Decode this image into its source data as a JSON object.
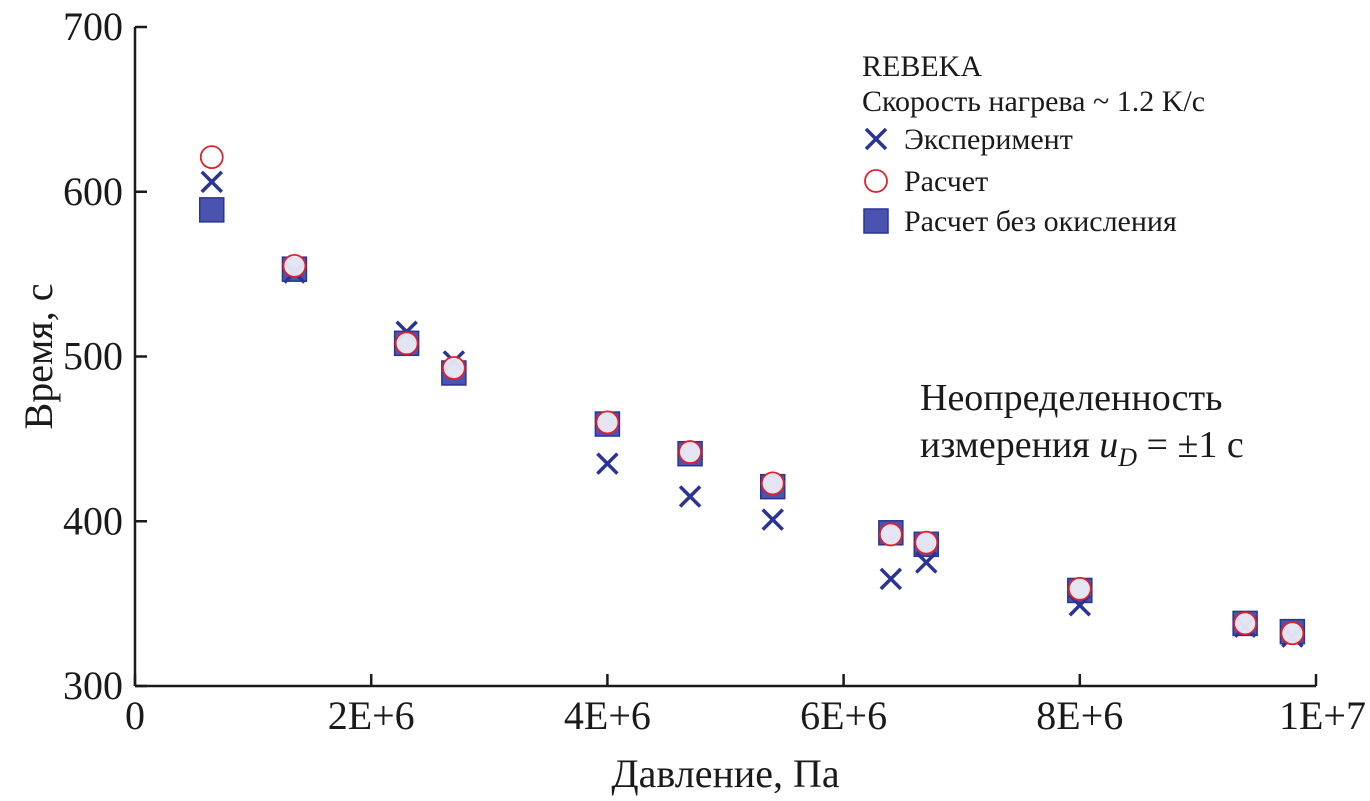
{
  "chart_data": {
    "type": "scatter",
    "title": "",
    "xlabel": "Давление, Па",
    "ylabel": "Время, с",
    "xlim": [
      0,
      10000000
    ],
    "ylim": [
      300,
      700
    ],
    "xticks": [
      {
        "value": 0,
        "label": "0"
      },
      {
        "value": 2000000,
        "label": "2E+6"
      },
      {
        "value": 4000000,
        "label": "4E+6"
      },
      {
        "value": 6000000,
        "label": "6E+6"
      },
      {
        "value": 8000000,
        "label": "8E+6"
      },
      {
        "value": 10000000,
        "label": "1E+7"
      }
    ],
    "yticks": [
      {
        "value": 300,
        "label": "300"
      },
      {
        "value": 400,
        "label": "400"
      },
      {
        "value": 500,
        "label": "500"
      },
      {
        "value": 600,
        "label": "600"
      },
      {
        "value": 700,
        "label": "700"
      }
    ],
    "grid": false,
    "legend": {
      "placement": "top-right",
      "title_line1": "REBEKA",
      "title_line2": "Скорость нагрева ~ 1.2 K/c"
    },
    "series": [
      {
        "name": "Расчет без окисления",
        "marker": "square",
        "color": "#4a54b0",
        "points": [
          {
            "x": 650000,
            "y": 589
          },
          {
            "x": 1350000,
            "y": 553
          },
          {
            "x": 2300000,
            "y": 508
          },
          {
            "x": 2700000,
            "y": 490
          },
          {
            "x": 4000000,
            "y": 459
          },
          {
            "x": 4700000,
            "y": 441
          },
          {
            "x": 5400000,
            "y": 421
          },
          {
            "x": 6400000,
            "y": 393
          },
          {
            "x": 6700000,
            "y": 386
          },
          {
            "x": 8000000,
            "y": 358
          },
          {
            "x": 9400000,
            "y": 338
          },
          {
            "x": 9800000,
            "y": 333
          }
        ]
      },
      {
        "name": "Эксперимент",
        "marker": "x",
        "color": "#2b3494",
        "points": [
          {
            "x": 650000,
            "y": 606
          },
          {
            "x": 1350000,
            "y": 551
          },
          {
            "x": 2300000,
            "y": 515
          },
          {
            "x": 2700000,
            "y": 497
          },
          {
            "x": 4000000,
            "y": 435
          },
          {
            "x": 4700000,
            "y": 415
          },
          {
            "x": 5400000,
            "y": 401
          },
          {
            "x": 6400000,
            "y": 365
          },
          {
            "x": 6700000,
            "y": 375
          },
          {
            "x": 8000000,
            "y": 349
          },
          {
            "x": 9400000,
            "y": 336
          },
          {
            "x": 9800000,
            "y": 330
          }
        ]
      },
      {
        "name": "Расчет",
        "marker": "circle",
        "color": "#e0202a",
        "points": [
          {
            "x": 650000,
            "y": 621
          },
          {
            "x": 1350000,
            "y": 555
          },
          {
            "x": 2300000,
            "y": 508
          },
          {
            "x": 2700000,
            "y": 493
          },
          {
            "x": 4000000,
            "y": 460
          },
          {
            "x": 4700000,
            "y": 442
          },
          {
            "x": 5400000,
            "y": 423
          },
          {
            "x": 6400000,
            "y": 392
          },
          {
            "x": 6700000,
            "y": 387
          },
          {
            "x": 8000000,
            "y": 359
          },
          {
            "x": 9400000,
            "y": 338
          },
          {
            "x": 9800000,
            "y": 332
          }
        ]
      }
    ],
    "annotation": {
      "line1": "Неопределенность",
      "line2_prefix": "измерения ",
      "symbol": "u",
      "subscript": "D",
      "line2_suffix": " = ±1 с"
    }
  }
}
